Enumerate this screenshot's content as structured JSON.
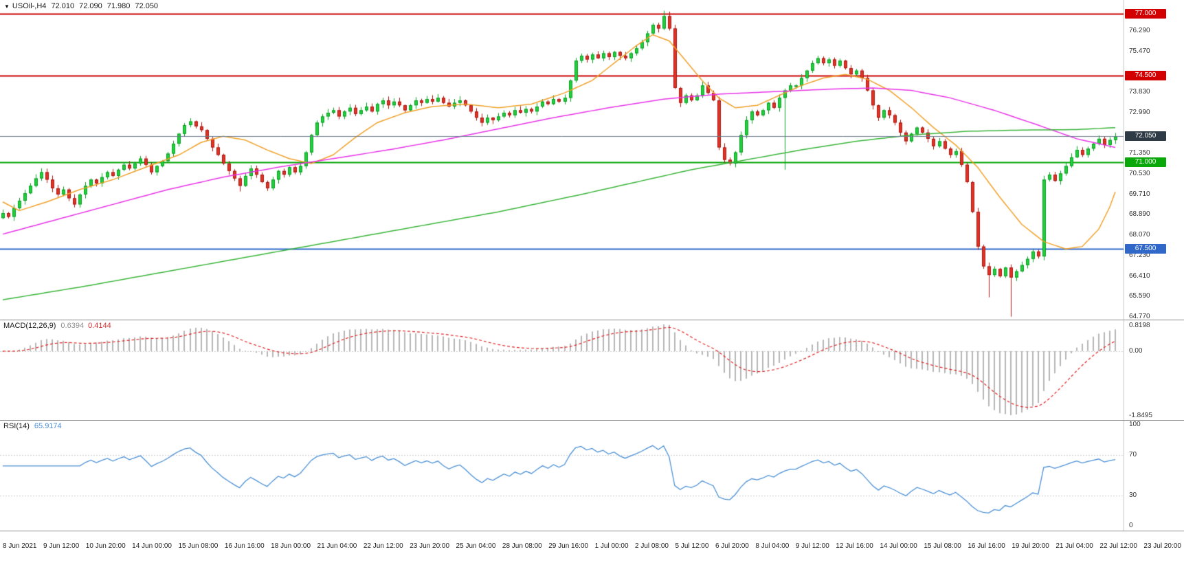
{
  "header": {
    "symbol": "USOil-,H4",
    "open": "72.010",
    "high": "72.090",
    "low": "71.980",
    "close": "72.050"
  },
  "panes": {
    "macd": {
      "label": "MACD(12,26,9)",
      "value_main": "0.6394",
      "value_signal": "0.4144",
      "axis": [
        "0.8198",
        "0.00",
        "-1.8495"
      ]
    },
    "rsi": {
      "label": "RSI(14)",
      "value": "65.9174",
      "axis": [
        "100",
        "70",
        "30",
        "0"
      ]
    }
  },
  "chart_data": {
    "type": "candlestick+indicators",
    "symbol": "USOil-",
    "timeframe": "H4",
    "current_quote": {
      "open": 72.01,
      "high": 72.09,
      "low": 71.98,
      "close": 72.05
    },
    "price_axis": {
      "min": 64.65,
      "max": 77.55,
      "ticks": [
        "76.290",
        "75.470",
        "73.830",
        "72.990",
        "71.350",
        "70.530",
        "69.710",
        "68.890",
        "68.070",
        "67.230",
        "66.410",
        "65.590",
        "64.770"
      ]
    },
    "horizontal_lines": [
      {
        "price": 77.0,
        "label": "77.000",
        "color": "#cc0000",
        "label_bg": "#d20000",
        "width": 2,
        "above": false
      },
      {
        "price": 74.5,
        "label": "74.500",
        "color": "#cc0000",
        "label_bg": "#d20000",
        "width": 2,
        "above": false
      },
      {
        "price": 72.05,
        "label": "72.050",
        "color": "#6a7b8c",
        "label_bg": "#2e3a46",
        "width": 1,
        "above": true
      },
      {
        "price": 71.0,
        "label": "71.000",
        "color": "#00a400",
        "label_bg": "#0aa80a",
        "width": 2,
        "above": false
      },
      {
        "price": 67.5,
        "label": "67.500",
        "color": "#2f68c8",
        "label_bg": "#2f68c8",
        "width": 2,
        "above": false
      }
    ],
    "time_labels": [
      "8 Jun 2021",
      "9 Jun 12:00",
      "10 Jun 20:00",
      "14 Jun 00:00",
      "15 Jun 08:00",
      "16 Jun 16:00",
      "18 Jun 00:00",
      "21 Jun 04:00",
      "22 Jun 12:00",
      "23 Jun 20:00",
      "25 Jun 04:00",
      "28 Jun 08:00",
      "29 Jun 16:00",
      "1 Jul 00:00",
      "2 Jul 08:00",
      "5 Jul 12:00",
      "6 Jul 20:00",
      "8 Jul 04:00",
      "9 Jul 12:00",
      "12 Jul 16:00",
      "14 Jul 00:00",
      "15 Jul 08:00",
      "16 Jul 16:00",
      "19 Jul 20:00",
      "21 Jul 04:00",
      "22 Jul 12:00",
      "23 Jul 20:00"
    ],
    "candle_colors": {
      "bull": "#22d13d",
      "bull_border": "#0c9c24",
      "bear": "#e23327",
      "bear_border": "#a81710"
    },
    "candles": {
      "first_open": 68.75,
      "closes": [
        68.95,
        68.8,
        69.15,
        69.45,
        69.75,
        70.05,
        70.35,
        70.6,
        70.3,
        69.95,
        69.7,
        69.9,
        69.55,
        69.3,
        69.7,
        70.05,
        70.3,
        70.15,
        70.4,
        70.6,
        70.45,
        70.7,
        70.9,
        70.75,
        70.95,
        71.15,
        70.9,
        70.6,
        70.85,
        71.05,
        71.35,
        71.75,
        72.15,
        72.5,
        72.65,
        72.45,
        72.3,
        71.95,
        71.6,
        71.3,
        70.95,
        70.65,
        70.35,
        70.05,
        70.45,
        70.75,
        70.5,
        70.2,
        69.95,
        70.3,
        70.65,
        70.5,
        70.8,
        70.6,
        70.85,
        71.4,
        72.1,
        72.6,
        72.85,
        73.0,
        73.1,
        72.85,
        73.05,
        73.2,
        72.95,
        73.1,
        73.25,
        73.05,
        73.35,
        73.5,
        73.3,
        73.45,
        73.3,
        73.1,
        73.3,
        73.5,
        73.4,
        73.55,
        73.45,
        73.6,
        73.4,
        73.25,
        73.4,
        73.5,
        73.3,
        73.05,
        72.8,
        72.6,
        72.8,
        72.7,
        72.85,
        73.0,
        72.9,
        73.1,
        73.0,
        73.15,
        73.05,
        73.25,
        73.45,
        73.35,
        73.55,
        73.45,
        73.6,
        74.3,
        75.1,
        75.3,
        75.15,
        75.35,
        75.2,
        75.4,
        75.25,
        75.45,
        75.3,
        75.2,
        75.4,
        75.6,
        75.85,
        76.2,
        76.55,
        76.4,
        76.9,
        76.4,
        74.0,
        73.4,
        73.7,
        73.5,
        73.7,
        74.1,
        73.8,
        73.5,
        71.6,
        71.1,
        70.95,
        71.4,
        72.1,
        72.7,
        73.05,
        72.9,
        73.1,
        73.4,
        73.2,
        73.6,
        73.9,
        74.1,
        74.1,
        74.4,
        74.7,
        75.0,
        75.2,
        75.0,
        75.15,
        74.9,
        75.1,
        74.8,
        74.55,
        74.7,
        74.4,
        73.9,
        73.3,
        72.8,
        73.1,
        72.9,
        72.6,
        72.2,
        71.85,
        72.15,
        72.4,
        72.2,
        71.95,
        71.65,
        71.85,
        71.55,
        71.3,
        71.45,
        70.9,
        70.2,
        69.0,
        67.6,
        66.8,
        66.45,
        66.7,
        66.4,
        66.75,
        66.35,
        66.6,
        66.85,
        67.1,
        67.4,
        67.2,
        70.3,
        70.5,
        70.25,
        70.55,
        70.85,
        71.2,
        71.5,
        71.3,
        71.55,
        71.75,
        71.95,
        71.7,
        71.9,
        72.05
      ],
      "wick_overrides": {
        "34": {
          "h": 72.78
        },
        "43": {
          "l": 69.82
        },
        "120": {
          "h": 77.12
        },
        "121": {
          "h": 77.08
        },
        "142": {
          "l": 70.7
        },
        "179": {
          "l": 65.55
        },
        "183": {
          "l": 64.77
        }
      }
    },
    "moving_averages": [
      {
        "name": "fast-ma",
        "color": "#f0a028",
        "points": [
          [
            0,
            69.4
          ],
          [
            3,
            69.05
          ],
          [
            8,
            69.4
          ],
          [
            14,
            69.9
          ],
          [
            20,
            70.3
          ],
          [
            26,
            70.8
          ],
          [
            32,
            71.3
          ],
          [
            36,
            71.8
          ],
          [
            40,
            72.05
          ],
          [
            44,
            71.9
          ],
          [
            48,
            71.5
          ],
          [
            52,
            71.15
          ],
          [
            56,
            70.95
          ],
          [
            60,
            71.3
          ],
          [
            64,
            72.0
          ],
          [
            68,
            72.6
          ],
          [
            73,
            73.0
          ],
          [
            78,
            73.25
          ],
          [
            84,
            73.35
          ],
          [
            90,
            73.2
          ],
          [
            96,
            73.35
          ],
          [
            102,
            73.8
          ],
          [
            107,
            74.3
          ],
          [
            111,
            75.0
          ],
          [
            115,
            75.7
          ],
          [
            118,
            76.15
          ],
          [
            121,
            75.9
          ],
          [
            124,
            75.1
          ],
          [
            127,
            74.3
          ],
          [
            130,
            73.6
          ],
          [
            133,
            73.2
          ],
          [
            137,
            73.3
          ],
          [
            141,
            73.7
          ],
          [
            145,
            74.1
          ],
          [
            149,
            74.4
          ],
          [
            153,
            74.55
          ],
          [
            157,
            74.35
          ],
          [
            161,
            73.9
          ],
          [
            165,
            73.2
          ],
          [
            169,
            72.4
          ],
          [
            173,
            71.7
          ],
          [
            177,
            70.8
          ],
          [
            181,
            69.6
          ],
          [
            185,
            68.5
          ],
          [
            189,
            67.8
          ],
          [
            193,
            67.5
          ],
          [
            196,
            67.6
          ],
          [
            199,
            68.3
          ],
          [
            201,
            69.2
          ],
          [
            202,
            69.8
          ]
        ]
      },
      {
        "name": "medium-ma",
        "color": "#e832e8",
        "points": [
          [
            0,
            68.1
          ],
          [
            10,
            68.7
          ],
          [
            20,
            69.3
          ],
          [
            30,
            69.9
          ],
          [
            40,
            70.4
          ],
          [
            50,
            70.8
          ],
          [
            60,
            71.15
          ],
          [
            70,
            71.5
          ],
          [
            80,
            71.9
          ],
          [
            90,
            72.35
          ],
          [
            100,
            72.8
          ],
          [
            110,
            73.2
          ],
          [
            120,
            73.55
          ],
          [
            130,
            73.75
          ],
          [
            140,
            73.85
          ],
          [
            150,
            73.95
          ],
          [
            158,
            74.0
          ],
          [
            165,
            73.9
          ],
          [
            172,
            73.6
          ],
          [
            180,
            73.1
          ],
          [
            188,
            72.5
          ],
          [
            195,
            71.95
          ],
          [
            202,
            71.6
          ]
        ]
      },
      {
        "name": "slow-ma",
        "color": "#38b438",
        "points": [
          [
            0,
            65.45
          ],
          [
            15,
            66.0
          ],
          [
            30,
            66.6
          ],
          [
            45,
            67.2
          ],
          [
            60,
            67.8
          ],
          [
            75,
            68.4
          ],
          [
            90,
            69.0
          ],
          [
            105,
            69.7
          ],
          [
            115,
            70.2
          ],
          [
            125,
            70.7
          ],
          [
            135,
            71.1
          ],
          [
            145,
            71.5
          ],
          [
            155,
            71.85
          ],
          [
            165,
            72.1
          ],
          [
            175,
            72.25
          ],
          [
            185,
            72.3
          ],
          [
            195,
            72.32
          ],
          [
            202,
            72.4
          ]
        ]
      }
    ],
    "macd": {
      "params": [
        12,
        26,
        9
      ],
      "display_main": 0.6394,
      "display_signal": 0.4144,
      "axis_max": 0.8198,
      "axis_min": -1.8495,
      "histogram_color": "#b6b6b6",
      "signal_color": "#e02020"
    },
    "rsi": {
      "period": 14,
      "display_value": 65.9174,
      "line_color": "#4a8fd4",
      "levels": [
        70,
        30
      ],
      "range": [
        0,
        100
      ]
    }
  }
}
